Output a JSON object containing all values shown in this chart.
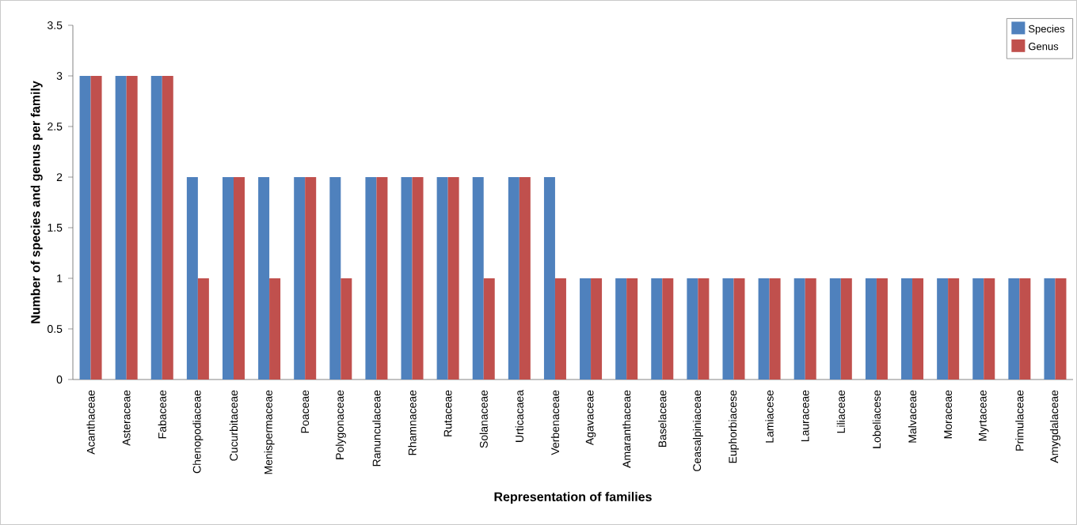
{
  "chart_data": {
    "type": "bar",
    "xlabel": "Representation of families",
    "ylabel": "Number of species and genus per family",
    "categories": [
      "Acanthaceae",
      "Asteraceae",
      "Fabaceae",
      "Chenopodiaceae",
      "Cucurbitaceae",
      "Menispermaceae",
      "Poaceae",
      "Polygonaceae",
      "Ranunculaceae",
      "Rhamnaceae",
      "Rutaceae",
      "Solanaceae",
      "Urticacaea",
      "Verbenaceae",
      "Agavaceae",
      "Amaranthaceae",
      "Baselaceae",
      "Ceasalpiniaceae",
      "Euphorbiacese",
      "Lamiacese",
      "Lauraceae",
      "Liliaceae",
      "Lobeliacese",
      "Malvaceae",
      "Moraceae",
      "Myrtaceae",
      "Primulaceae",
      "Amygdalaceae"
    ],
    "series": [
      {
        "name": "Species",
        "color": "#4f81bd",
        "values": [
          3,
          3,
          3,
          2,
          2,
          2,
          2,
          2,
          2,
          2,
          2,
          2,
          2,
          2,
          1,
          1,
          1,
          1,
          1,
          1,
          1,
          1,
          1,
          1,
          1,
          1,
          1,
          1
        ]
      },
      {
        "name": "Genus",
        "color": "#c0504d",
        "values": [
          3,
          3,
          3,
          1,
          2,
          1,
          2,
          1,
          2,
          2,
          2,
          1,
          2,
          1,
          1,
          1,
          1,
          1,
          1,
          1,
          1,
          1,
          1,
          1,
          1,
          1,
          1,
          1
        ]
      }
    ],
    "ylim": [
      0,
      3.5
    ],
    "yticks": [
      0,
      0.5,
      1,
      1.5,
      2,
      2.5,
      3,
      3.5
    ],
    "grid": false,
    "legend": "top right"
  }
}
